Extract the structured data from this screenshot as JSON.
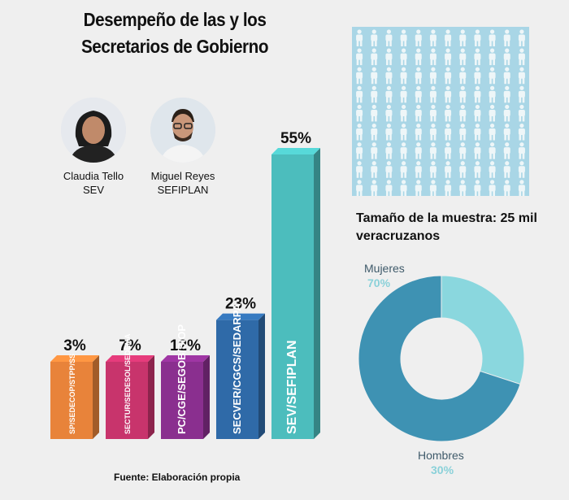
{
  "title_line1": "Desempeño de las y los",
  "title_line2": "Secretarios de Gobierno",
  "people": [
    {
      "name": "Claudia Tello",
      "org": "SEV"
    },
    {
      "name": "Miguel Reyes",
      "org": "SEFIPLAN"
    }
  ],
  "sample_text": "Tamaño de la muestra: 25 mil veracruzanos",
  "source": "Fuente: Elaboración propia",
  "chart_data": [
    {
      "type": "bar",
      "title": "Desempeño de las y los Secretarios de Gobierno",
      "categories": [
        "SP/SEDECOP/STPP/SS",
        "SECTUR/SEDESOL/SEDEMA",
        "PC/CGE/SEGOB/SIOP",
        "SECVER/CGCS/SEDARPA",
        "SEV/SEFIPLAN"
      ],
      "values": [
        3,
        7,
        12,
        23,
        55
      ],
      "value_labels": [
        "3%",
        "7%",
        "12%",
        "23%",
        "55%"
      ],
      "colors": [
        "#e8833a",
        "#c8346c",
        "#8a2f8f",
        "#2f6aa8",
        "#4cbdbd"
      ],
      "ylim": [
        0,
        55
      ]
    },
    {
      "type": "pie",
      "categories": [
        "Mujeres",
        "Hombres"
      ],
      "value_labels": [
        "70%",
        "30%"
      ],
      "values": [
        70,
        30
      ],
      "colors": [
        "#3e92b3",
        "#8ad7de"
      ]
    }
  ]
}
